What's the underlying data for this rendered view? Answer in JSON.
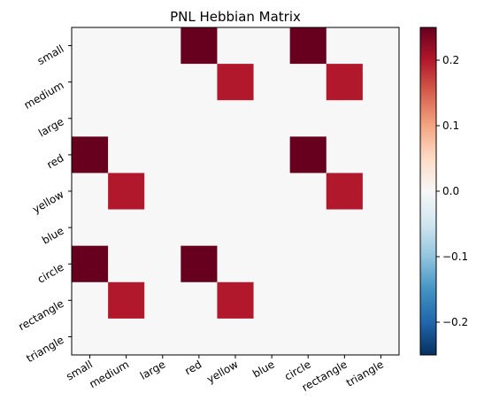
{
  "chart_data": {
    "type": "heatmap",
    "title": "PNL Hebbian Matrix",
    "xlabel": "",
    "ylabel": "",
    "x_categories": [
      "small",
      "medium",
      "large",
      "red",
      "yellow",
      "blue",
      "circle",
      "rectangle",
      "triangle"
    ],
    "y_categories": [
      "small",
      "medium",
      "large",
      "red",
      "yellow",
      "blue",
      "circle",
      "rectangle",
      "triangle"
    ],
    "values": [
      [
        0,
        0,
        0,
        0.25,
        0,
        0,
        0.25,
        0,
        0
      ],
      [
        0,
        0,
        0,
        0,
        0.2,
        0,
        0,
        0.2,
        0
      ],
      [
        0,
        0,
        0,
        0,
        0,
        0,
        0,
        0,
        0
      ],
      [
        0.25,
        0,
        0,
        0,
        0,
        0,
        0.25,
        0,
        0
      ],
      [
        0,
        0.2,
        0,
        0,
        0,
        0,
        0,
        0.2,
        0
      ],
      [
        0,
        0,
        0,
        0,
        0,
        0,
        0,
        0,
        0
      ],
      [
        0.25,
        0,
        0,
        0.25,
        0,
        0,
        0,
        0,
        0
      ],
      [
        0,
        0.2,
        0,
        0,
        0.2,
        0,
        0,
        0,
        0
      ],
      [
        0,
        0,
        0,
        0,
        0,
        0,
        0,
        0,
        0
      ]
    ],
    "colorbar": {
      "colormap": "RdBu_r",
      "vmin": -0.25,
      "vmax": 0.25,
      "ticks": [
        -0.2,
        -0.1,
        0.0,
        0.1,
        0.2
      ],
      "tick_labels": [
        "−0.2",
        "−0.1",
        "0.0",
        "0.1",
        "0.2"
      ]
    },
    "grid": false
  }
}
